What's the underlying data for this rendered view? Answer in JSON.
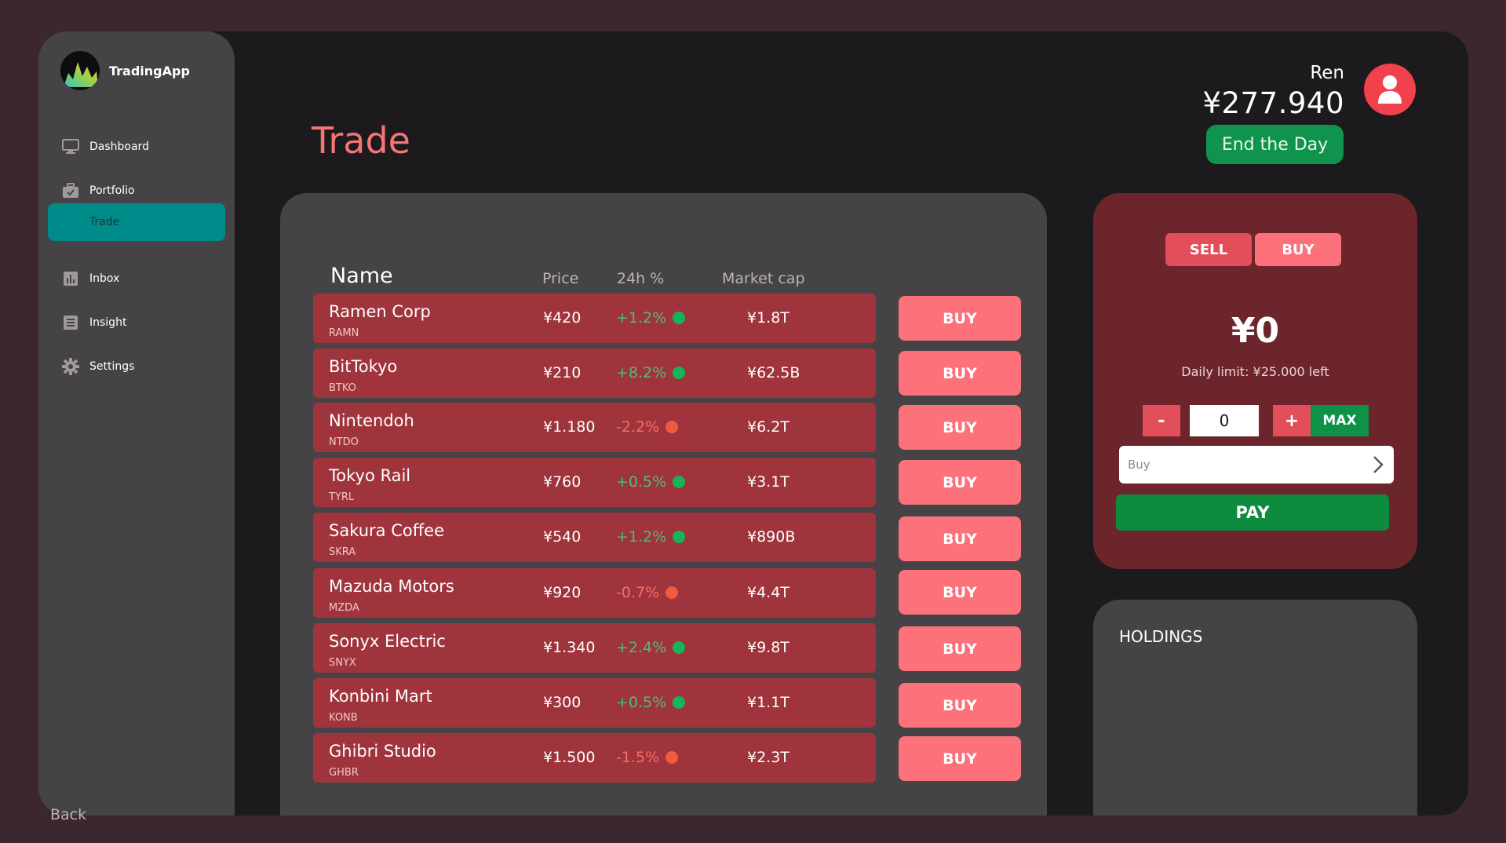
{
  "brand": {
    "name": "TradingApp",
    "logo_icon": "flame-logo-icon"
  },
  "sidebar": {
    "items": [
      {
        "label": "Dashboard",
        "icon": "monitor-icon",
        "active": false
      },
      {
        "label": "Portfolio",
        "icon": "briefcase-icon",
        "active": false
      },
      {
        "label": "Trade",
        "icon": "",
        "active": true
      },
      {
        "label": "Inbox",
        "icon": "bar-chart-icon",
        "active": false
      },
      {
        "label": "Insight",
        "icon": "document-icon",
        "active": false
      },
      {
        "label": "Settings",
        "icon": "gear-icon",
        "active": false
      }
    ],
    "back_label": "Back"
  },
  "header": {
    "title": "Trade",
    "user_name": "Ren",
    "balance": "¥277.940",
    "end_day_label": "End the Day",
    "avatar_icon": "user-icon"
  },
  "market": {
    "columns": {
      "name": "Name",
      "price": "Price",
      "change": "24h %",
      "cap": "Market cap"
    },
    "buy_label": "BUY",
    "stocks": [
      {
        "name": "Ramen Corp",
        "ticker": "RAMN",
        "price": "¥420",
        "change": "+1.2%",
        "trend": "up",
        "cap": "¥1.8T"
      },
      {
        "name": "BitTokyo",
        "ticker": "BTKO",
        "price": "¥210",
        "change": "+8.2%",
        "trend": "up",
        "cap": "¥62.5B"
      },
      {
        "name": "Nintendoh",
        "ticker": "NTDO",
        "price": "¥1.180",
        "change": "-2.2%",
        "trend": "down",
        "cap": "¥6.2T"
      },
      {
        "name": "Tokyo Rail",
        "ticker": "TYRL",
        "price": "¥760",
        "change": "+0.5%",
        "trend": "up",
        "cap": "¥3.1T"
      },
      {
        "name": "Sakura Coffee",
        "ticker": "SKRA",
        "price": "¥540",
        "change": "+1.2%",
        "trend": "up",
        "cap": "¥890B"
      },
      {
        "name": "Mazuda Motors",
        "ticker": "MZDA",
        "price": "¥920",
        "change": "-0.7%",
        "trend": "down",
        "cap": "¥4.4T"
      },
      {
        "name": "Sonyx Electric",
        "ticker": "SNYX",
        "price": "¥1.340",
        "change": "+2.4%",
        "trend": "up",
        "cap": "¥9.8T"
      },
      {
        "name": "Konbini Mart",
        "ticker": "KONB",
        "price": "¥300",
        "change": "+0.5%",
        "trend": "up",
        "cap": "¥1.1T"
      },
      {
        "name": "Ghibri Studio",
        "ticker": "GHBR",
        "price": "¥1.500",
        "change": "-1.5%",
        "trend": "down",
        "cap": "¥2.3T"
      }
    ]
  },
  "trade": {
    "sell_label": "SELL",
    "buy_label": "BUY",
    "amount": "¥0",
    "daily_limit": "Daily limit: ¥25.000 left",
    "minus_label": "-",
    "plus_label": "+",
    "quantity": "0",
    "max_label": "MAX",
    "select_value": "Buy",
    "pay_label": "PAY"
  },
  "holdings": {
    "title": "HOLDINGS"
  },
  "colors": {
    "accent_active": "#008b8b",
    "title": "#f47574",
    "row_bg": "#a0343c",
    "buy_btn": "#fd717a",
    "up": "#14b55a",
    "down": "#f05a3e",
    "green_btn": "#10934d"
  }
}
